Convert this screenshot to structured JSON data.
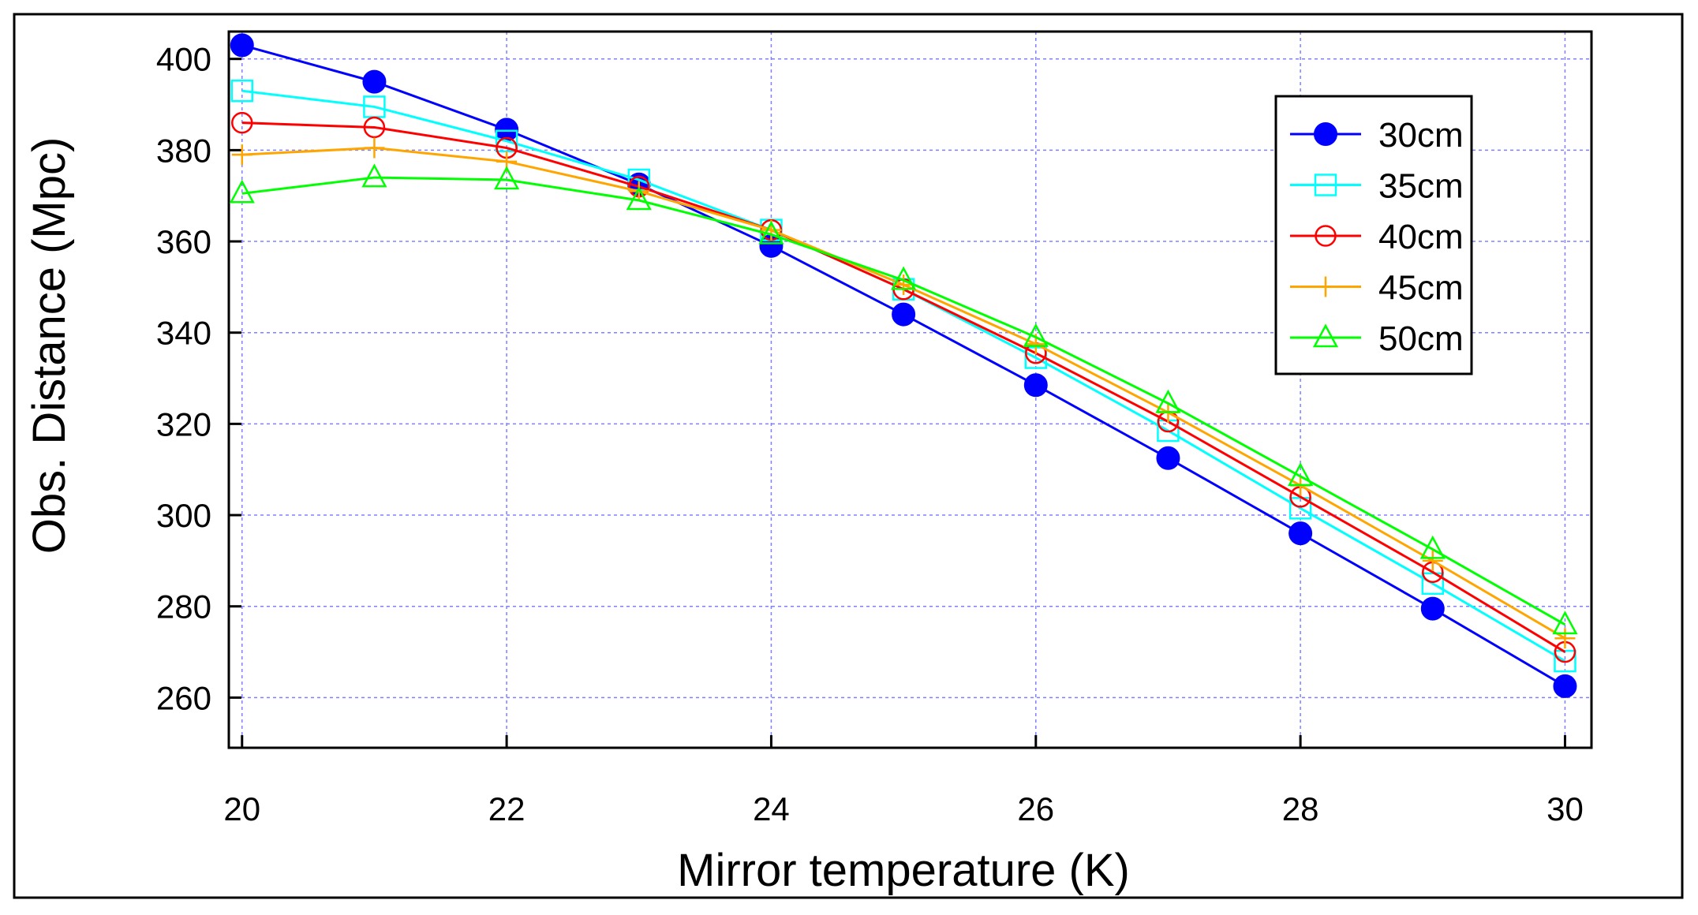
{
  "chart_data": {
    "type": "line",
    "title": "",
    "xlabel": "Mirror temperature (K)",
    "ylabel": "Obs. Distance (Mpc)",
    "xlim": [
      19.9,
      30.2
    ],
    "ylim": [
      249,
      406
    ],
    "xticks": [
      20,
      22,
      24,
      26,
      28,
      30
    ],
    "yticks": [
      260,
      280,
      300,
      320,
      340,
      360,
      380,
      400
    ],
    "grid": true,
    "legend_position": "top-right",
    "x": [
      20,
      21,
      22,
      23,
      24,
      25,
      26,
      27,
      28,
      29,
      30
    ],
    "series": [
      {
        "name": "30cm",
        "color": "#0000ff",
        "marker": "filled-circle",
        "values": [
          403,
          395,
          384.5,
          372.5,
          359,
          344,
          328.5,
          312.5,
          296,
          279.5,
          262.5
        ]
      },
      {
        "name": "35cm",
        "color": "#00ffff",
        "marker": "open-square",
        "values": [
          393,
          389.5,
          382,
          373.5,
          362.5,
          349.5,
          334.5,
          318.5,
          301.5,
          285,
          268
        ]
      },
      {
        "name": "40cm",
        "color": "#ff0000",
        "marker": "open-circle",
        "values": [
          386,
          385,
          380.5,
          372,
          362.5,
          349.5,
          335.5,
          320.5,
          304,
          287.5,
          270
        ]
      },
      {
        "name": "45cm",
        "color": "#ffa500",
        "marker": "plus",
        "values": [
          379,
          380.5,
          377.5,
          371,
          362.5,
          350.5,
          337.5,
          322.5,
          306.5,
          290,
          273
        ]
      },
      {
        "name": "50cm",
        "color": "#00ff00",
        "marker": "open-triangle",
        "values": [
          370.5,
          374,
          373.5,
          369,
          361.5,
          351.5,
          339,
          324.5,
          308.5,
          292.5,
          276
        ]
      }
    ]
  }
}
